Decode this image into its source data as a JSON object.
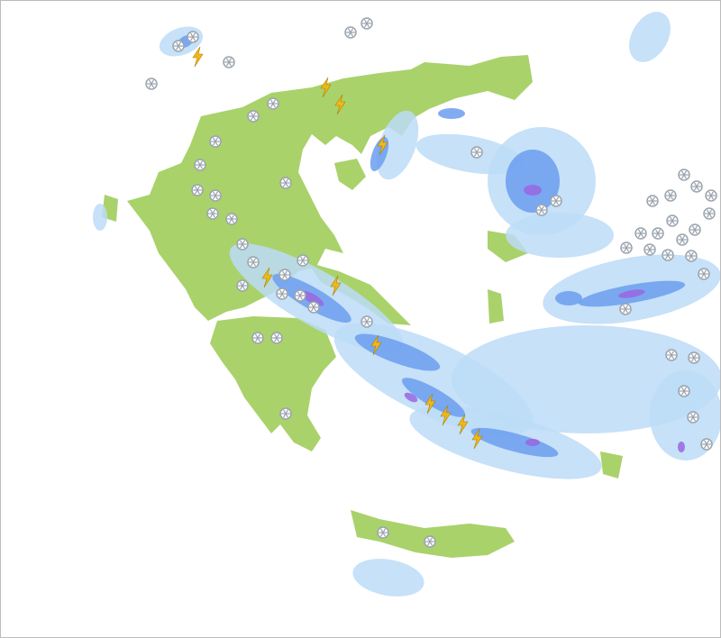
{
  "map": {
    "colors": {
      "sea": "#ffffff",
      "land": "#a9d26b",
      "precip_light": "#bcdcf7",
      "precip_moderate": "#6b9ef0",
      "precip_heavy": "#9966e0",
      "lightning": "#f2b817",
      "snow": "#9aa3ad"
    },
    "icons": [
      "snowflake-icon",
      "lightning-icon"
    ]
  }
}
